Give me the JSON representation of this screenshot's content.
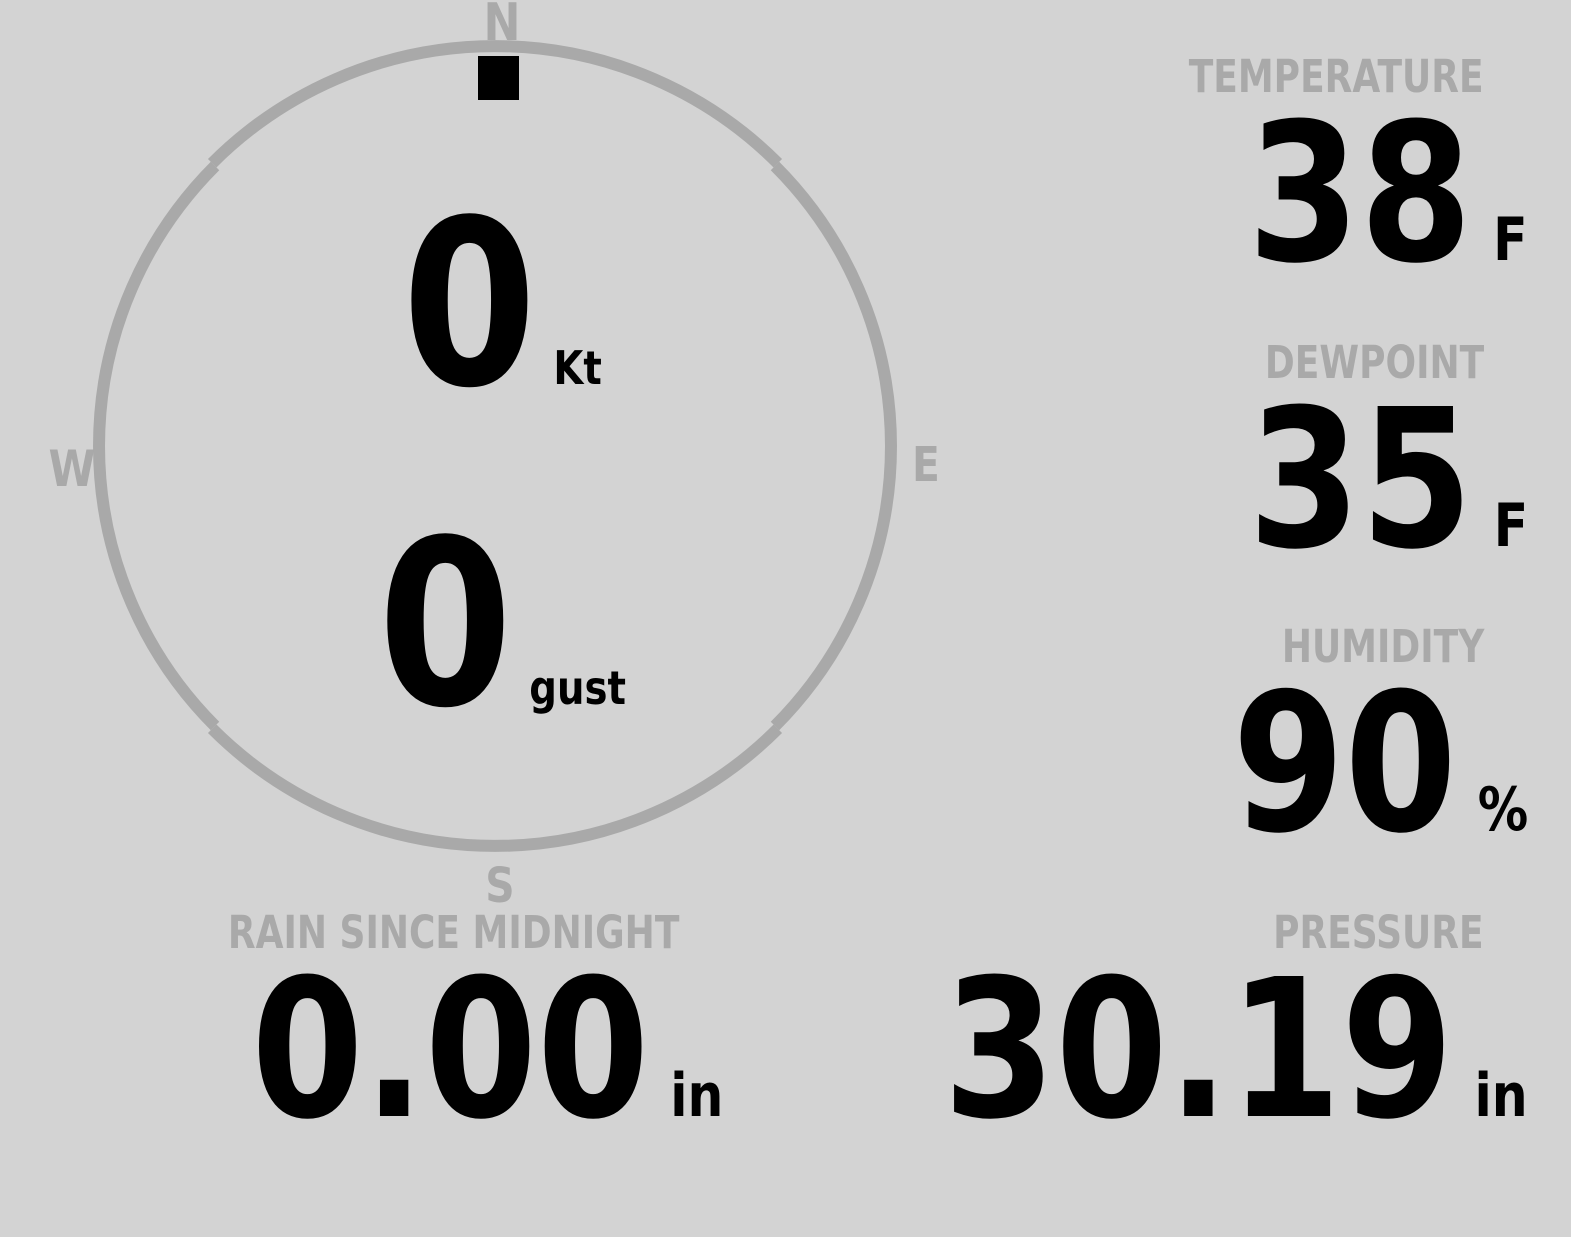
{
  "theme": {
    "background": "#d3d3d3",
    "muted": "#a9a9a9",
    "ink": "#000000"
  },
  "wind": {
    "cardinals": {
      "n": "N",
      "e": "E",
      "s": "S",
      "w": "W"
    },
    "direction_deg": 0,
    "speed": {
      "value": "0",
      "unit": "Kt"
    },
    "gust": {
      "value": "0",
      "unit": "gust"
    }
  },
  "stats": {
    "temperature": {
      "label": "TEMPERATURE",
      "value": "38",
      "unit": "F"
    },
    "dewpoint": {
      "label": "DEWPOINT",
      "value": "35",
      "unit": "F"
    },
    "humidity": {
      "label": "HUMIDITY",
      "value": "90",
      "unit": "%"
    },
    "rain": {
      "label": "RAIN SINCE MIDNIGHT",
      "value": "0.00",
      "unit": "in"
    },
    "pressure": {
      "label": "PRESSURE",
      "value": "30.19",
      "unit": "in"
    }
  }
}
